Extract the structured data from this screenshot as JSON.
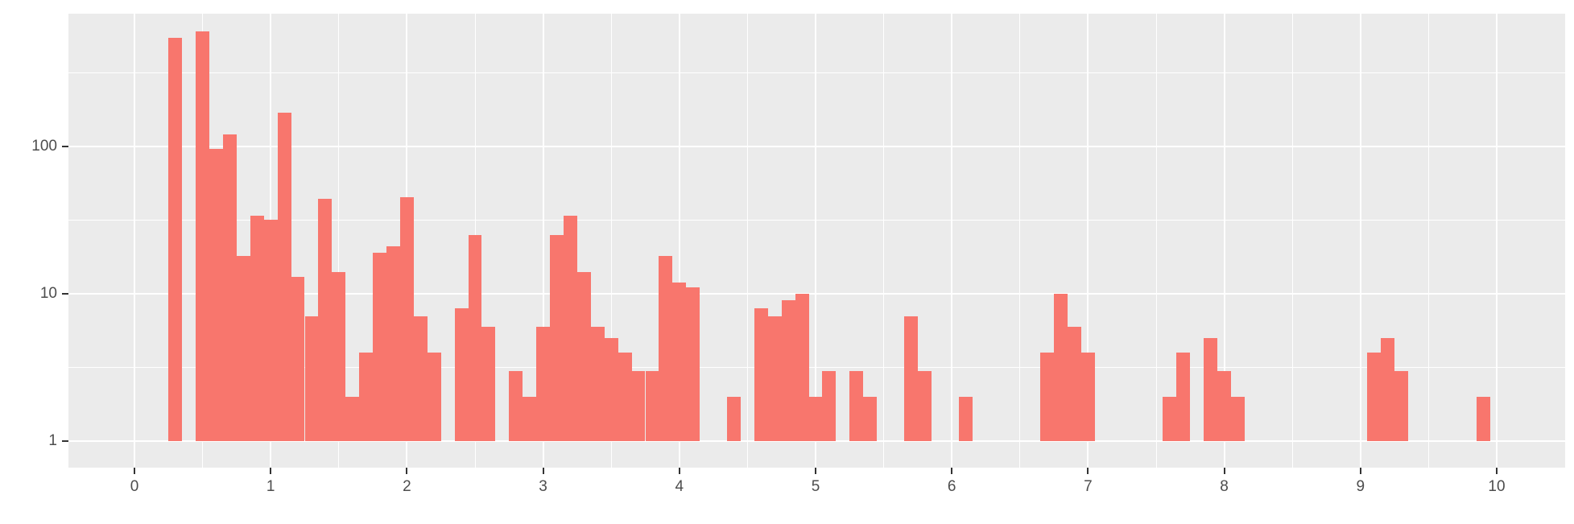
{
  "chart_data": {
    "type": "bar",
    "subtype": "histogram",
    "title": "",
    "xlabel": "",
    "ylabel": "",
    "bin_width": 0.1,
    "x_scale": {
      "type": "linear",
      "range": [
        -0.49,
        10.49
      ],
      "major_ticks": [
        0,
        1,
        2,
        3,
        4,
        5,
        6,
        7,
        8,
        9,
        10
      ],
      "major_tick_labels": [
        "0",
        "1",
        "2",
        "3",
        "4",
        "5",
        "6",
        "7",
        "8",
        "9",
        "10"
      ],
      "minor_ticks": [
        0.5,
        1.5,
        2.5,
        3.5,
        4.5,
        5.5,
        6.5,
        7.5,
        8.5,
        9.5
      ]
    },
    "y_scale": {
      "type": "log10",
      "major_ticks": [
        1,
        10,
        100
      ],
      "major_tick_labels": [
        "1",
        "10",
        "100"
      ],
      "minor_ticks": [
        3.1623,
        31.623,
        316.23
      ]
    },
    "grid": true,
    "legend": "none",
    "bins": [
      {
        "x": 0.3,
        "count": 550
      },
      {
        "x": 0.5,
        "count": 605
      },
      {
        "x": 0.6,
        "count": 96
      },
      {
        "x": 0.7,
        "count": 121
      },
      {
        "x": 0.8,
        "count": 18
      },
      {
        "x": 0.9,
        "count": 34
      },
      {
        "x": 1.0,
        "count": 32
      },
      {
        "x": 1.1,
        "count": 170
      },
      {
        "x": 1.2,
        "count": 13
      },
      {
        "x": 1.3,
        "count": 7
      },
      {
        "x": 1.4,
        "count": 44
      },
      {
        "x": 1.5,
        "count": 14
      },
      {
        "x": 1.6,
        "count": 2
      },
      {
        "x": 1.7,
        "count": 4
      },
      {
        "x": 1.8,
        "count": 19
      },
      {
        "x": 1.9,
        "count": 21
      },
      {
        "x": 2.0,
        "count": 45
      },
      {
        "x": 2.1,
        "count": 7
      },
      {
        "x": 2.2,
        "count": 4
      },
      {
        "x": 2.4,
        "count": 8
      },
      {
        "x": 2.5,
        "count": 25
      },
      {
        "x": 2.6,
        "count": 6
      },
      {
        "x": 2.8,
        "count": 3
      },
      {
        "x": 2.9,
        "count": 2
      },
      {
        "x": 3.0,
        "count": 6
      },
      {
        "x": 3.1,
        "count": 25
      },
      {
        "x": 3.2,
        "count": 34
      },
      {
        "x": 3.3,
        "count": 14
      },
      {
        "x": 3.4,
        "count": 6
      },
      {
        "x": 3.5,
        "count": 5
      },
      {
        "x": 3.6,
        "count": 4
      },
      {
        "x": 3.7,
        "count": 3
      },
      {
        "x": 3.8,
        "count": 3
      },
      {
        "x": 3.9,
        "count": 18
      },
      {
        "x": 4.0,
        "count": 12
      },
      {
        "x": 4.1,
        "count": 11
      },
      {
        "x": 4.4,
        "count": 2
      },
      {
        "x": 4.6,
        "count": 8
      },
      {
        "x": 4.7,
        "count": 7
      },
      {
        "x": 4.8,
        "count": 9
      },
      {
        "x": 4.9,
        "count": 10
      },
      {
        "x": 5.0,
        "count": 2
      },
      {
        "x": 5.1,
        "count": 3
      },
      {
        "x": 5.3,
        "count": 3
      },
      {
        "x": 5.4,
        "count": 2
      },
      {
        "x": 5.7,
        "count": 7
      },
      {
        "x": 5.8,
        "count": 3
      },
      {
        "x": 6.1,
        "count": 2
      },
      {
        "x": 6.7,
        "count": 4
      },
      {
        "x": 6.8,
        "count": 10
      },
      {
        "x": 6.9,
        "count": 6
      },
      {
        "x": 7.0,
        "count": 4
      },
      {
        "x": 7.6,
        "count": 2
      },
      {
        "x": 7.7,
        "count": 4
      },
      {
        "x": 7.9,
        "count": 5
      },
      {
        "x": 8.0,
        "count": 3
      },
      {
        "x": 8.1,
        "count": 2
      },
      {
        "x": 9.1,
        "count": 4
      },
      {
        "x": 9.2,
        "count": 5
      },
      {
        "x": 9.3,
        "count": 3
      },
      {
        "x": 9.9,
        "count": 2
      }
    ]
  },
  "colors": {
    "bar_fill": "#F8766D",
    "panel_background": "#EBEBEB",
    "gridline": "#FFFFFF",
    "axis_text": "#4D4D4D",
    "tick_mark": "#333333",
    "page_background": "#FFFFFF"
  }
}
